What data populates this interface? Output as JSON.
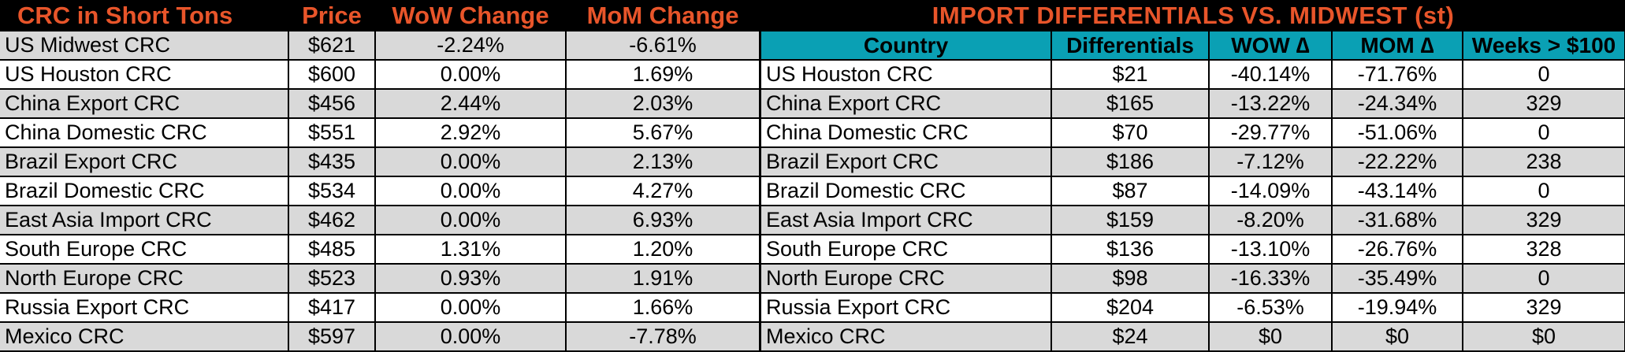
{
  "left": {
    "headers": [
      "CRC in Short Tons",
      "Price",
      "WoW Change",
      "MoM Change"
    ],
    "rows": [
      {
        "name": "US Midwest CRC",
        "price": "$621",
        "wow": "-2.24%",
        "mom": "-6.61%"
      },
      {
        "name": "US Houston CRC",
        "price": "$600",
        "wow": "0.00%",
        "mom": "1.69%"
      },
      {
        "name": "China Export CRC",
        "price": "$456",
        "wow": "2.44%",
        "mom": "2.03%"
      },
      {
        "name": "China Domestic CRC",
        "price": "$551",
        "wow": "2.92%",
        "mom": "5.67%"
      },
      {
        "name": "Brazil Export CRC",
        "price": "$435",
        "wow": "0.00%",
        "mom": "2.13%"
      },
      {
        "name": "Brazil Domestic CRC",
        "price": "$534",
        "wow": "0.00%",
        "mom": "4.27%"
      },
      {
        "name": "East Asia Import CRC",
        "price": "$462",
        "wow": "0.00%",
        "mom": "6.93%"
      },
      {
        "name": "South Europe CRC",
        "price": "$485",
        "wow": "1.31%",
        "mom": "1.20%"
      },
      {
        "name": "North Europe CRC",
        "price": "$523",
        "wow": "0.93%",
        "mom": "1.91%"
      },
      {
        "name": "Russia Export CRC",
        "price": "$417",
        "wow": "0.00%",
        "mom": "1.66%"
      },
      {
        "name": "Mexico CRC",
        "price": "$597",
        "wow": "0.00%",
        "mom": "-7.78%"
      }
    ]
  },
  "right": {
    "title": "IMPORT DIFFERENTIALS VS. MIDWEST (st)",
    "headers": [
      "Country",
      "Differentials",
      "WOW ∆",
      "MOM ∆",
      "Weeks > $100"
    ],
    "rows": [
      {
        "name": "US Houston CRC",
        "diff": "$21",
        "wow": "-40.14%",
        "mom": "-71.76%",
        "weeks": "0"
      },
      {
        "name": "China Export CRC",
        "diff": "$165",
        "wow": "-13.22%",
        "mom": "-24.34%",
        "weeks": "329"
      },
      {
        "name": "China Domestic CRC",
        "diff": "$70",
        "wow": "-29.77%",
        "mom": "-51.06%",
        "weeks": "0"
      },
      {
        "name": "Brazil Export CRC",
        "diff": "$186",
        "wow": "-7.12%",
        "mom": "-22.22%",
        "weeks": "238"
      },
      {
        "name": "Brazil Domestic CRC",
        "diff": "$87",
        "wow": "-14.09%",
        "mom": "-43.14%",
        "weeks": "0"
      },
      {
        "name": "East Asia Import CRC",
        "diff": "$159",
        "wow": "-8.20%",
        "mom": "-31.68%",
        "weeks": "329"
      },
      {
        "name": "South Europe CRC",
        "diff": "$136",
        "wow": "-13.10%",
        "mom": "-26.76%",
        "weeks": "328"
      },
      {
        "name": "North Europe CRC",
        "diff": "$98",
        "wow": "-16.33%",
        "mom": "-35.49%",
        "weeks": "0"
      },
      {
        "name": "Russia Export CRC",
        "diff": "$204",
        "wow": "-6.53%",
        "mom": "-19.94%",
        "weeks": "329"
      },
      {
        "name": "Mexico CRC",
        "diff": "$24",
        "wow": "$0",
        "mom": "$0",
        "weeks": "$0"
      }
    ]
  },
  "colors": {
    "header_text": "#e8552a",
    "subheader_bg": "#0aa0b4",
    "shade_row": "#d9d9d9"
  }
}
